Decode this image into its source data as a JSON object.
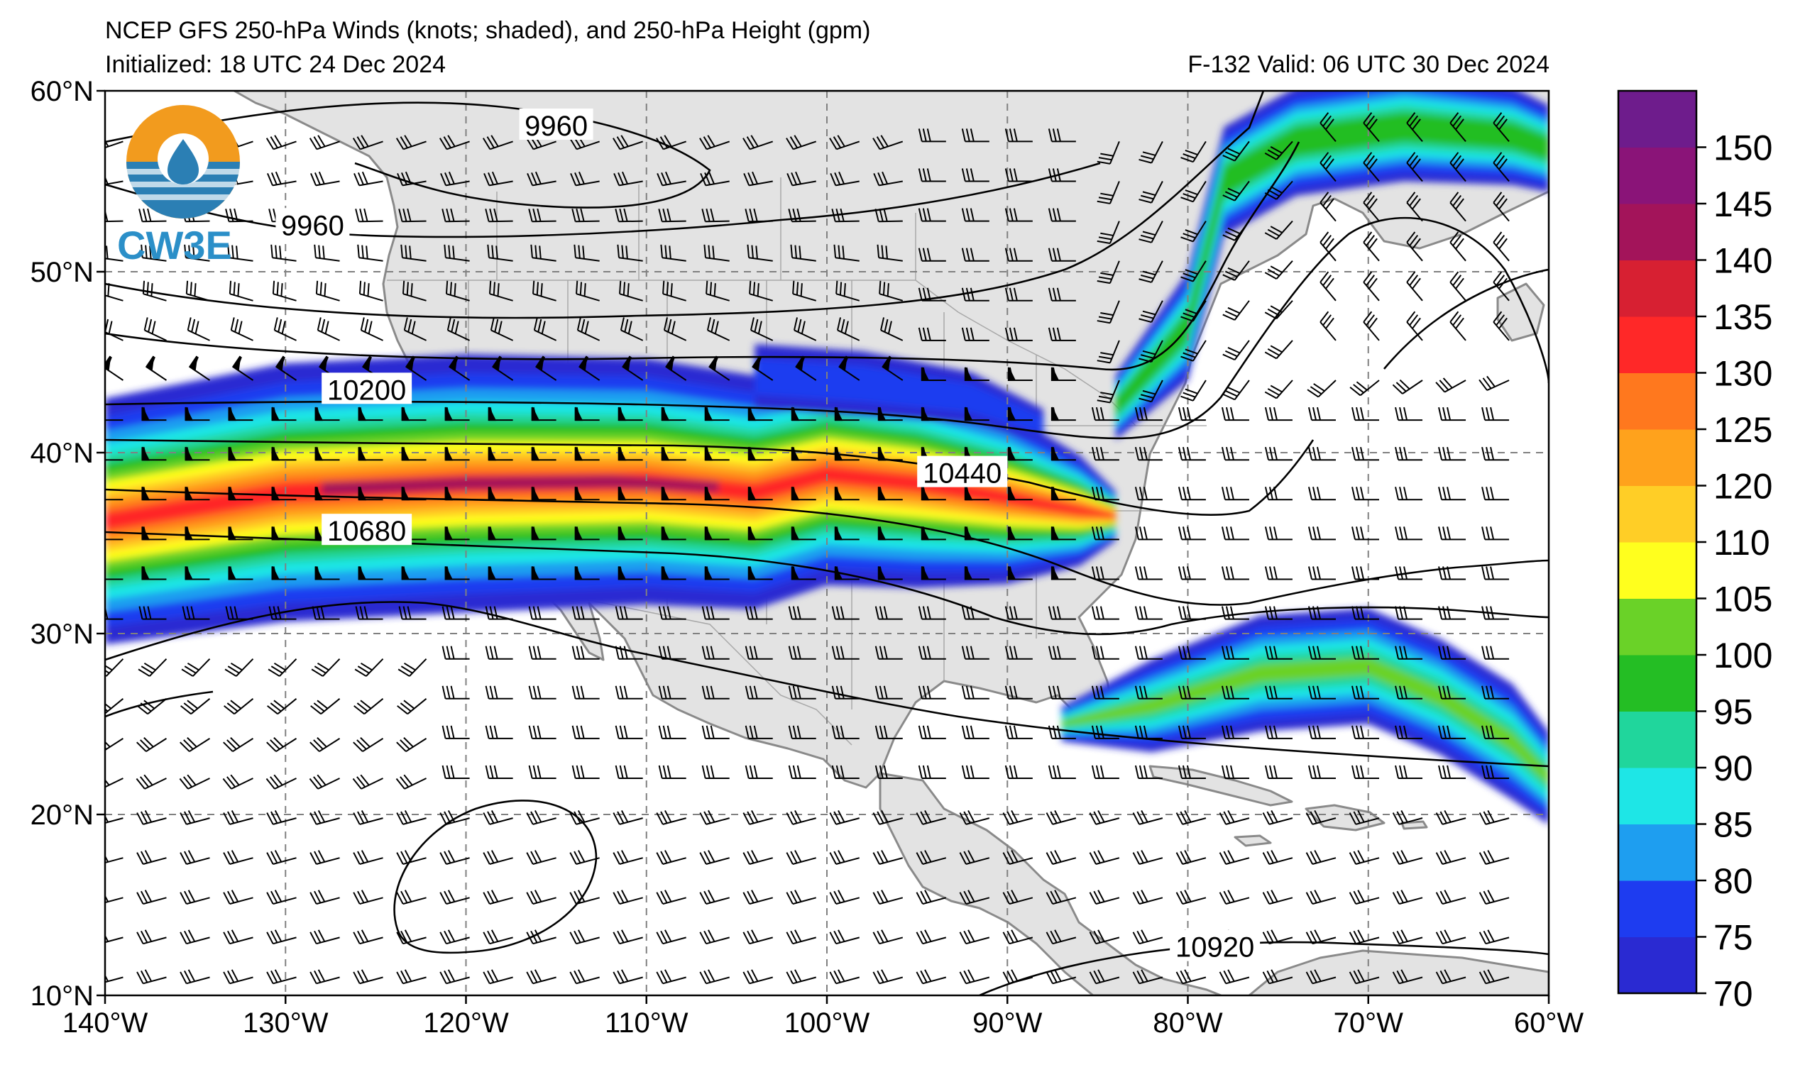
{
  "title": {
    "line1": "NCEP GFS 250-hPa Winds (knots; shaded), and 250-hPa Height (gpm)",
    "init": "Initialized: 18 UTC 24 Dec 2024",
    "valid": "F-132  Valid: 06 UTC 30 Dec 2024"
  },
  "logo": {
    "text": "CW3E"
  },
  "map": {
    "lon_range": [
      -140,
      -60
    ],
    "lat_range": [
      10,
      60
    ],
    "lon_ticks": [
      "140°W",
      "130°W",
      "120°W",
      "110°W",
      "100°W",
      "90°W",
      "80°W",
      "70°W",
      "60°W"
    ],
    "lat_ticks": [
      "60°N",
      "50°N",
      "40°N",
      "30°N",
      "20°N",
      "10°N"
    ],
    "gridlines": "dashed",
    "land_color": "#e3e3e3",
    "ocean_color": "#ffffff"
  },
  "height_contour_labels": [
    {
      "text": "9960",
      "lon": -115,
      "lat": 58
    },
    {
      "text": "9960",
      "lon": -128.5,
      "lat": 52.5
    },
    {
      "text": "10200",
      "lon": -125.5,
      "lat": 43.4
    },
    {
      "text": "10440",
      "lon": -92.5,
      "lat": 38.8
    },
    {
      "text": "10680",
      "lon": -125.5,
      "lat": 35.6
    },
    {
      "text": "10920",
      "lon": -78.5,
      "lat": 12.6
    }
  ],
  "colorbar": {
    "label": "knots",
    "levels": [
      70,
      75,
      80,
      85,
      90,
      95,
      100,
      105,
      110,
      120,
      125,
      130,
      135,
      140,
      145,
      150
    ],
    "tick_labels": [
      "70",
      "75",
      "80",
      "85",
      "90",
      "95",
      "100",
      "105",
      "110",
      "120",
      "125",
      "130",
      "135",
      "140",
      "145",
      "150"
    ],
    "colors": [
      "#2a2ad2",
      "#1e3cf0",
      "#1e9ef0",
      "#1ee6e6",
      "#20d69c",
      "#24be24",
      "#6ad228",
      "#ffff1e",
      "#ffce26",
      "#ffa21c",
      "#ff781e",
      "#ff2828",
      "#d72032",
      "#a3145a",
      "#8a1478",
      "#6e1c8c"
    ]
  }
}
